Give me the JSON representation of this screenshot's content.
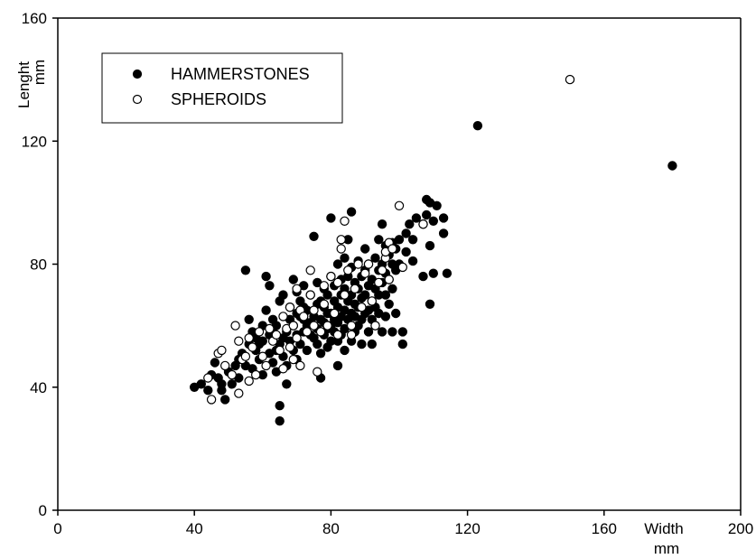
{
  "chart_data": {
    "type": "scatter",
    "title": "",
    "xlabel": "Width",
    "xunit": "mm",
    "ylabel": "Lenght",
    "yunit": "mm",
    "xlim": [
      0,
      200
    ],
    "ylim": [
      0,
      160
    ],
    "xticks": [
      0,
      40,
      80,
      120,
      160,
      200
    ],
    "yticks": [
      0,
      40,
      80,
      120,
      160
    ],
    "grid": false,
    "legend_position": "top-left",
    "series": [
      {
        "name": "HAMMERSTONES",
        "marker": "filled-circle",
        "color": "#000000",
        "points": [
          [
            40,
            40
          ],
          [
            42,
            41
          ],
          [
            44,
            39
          ],
          [
            45,
            44
          ],
          [
            46,
            48
          ],
          [
            47,
            43
          ],
          [
            48,
            39
          ],
          [
            48,
            41
          ],
          [
            49,
            36
          ],
          [
            50,
            45
          ],
          [
            51,
            41
          ],
          [
            52,
            47
          ],
          [
            53,
            43
          ],
          [
            53,
            49
          ],
          [
            54,
            51
          ],
          [
            55,
            47
          ],
          [
            55,
            78
          ],
          [
            56,
            54
          ],
          [
            56,
            62
          ],
          [
            57,
            46
          ],
          [
            57,
            58
          ],
          [
            58,
            52
          ],
          [
            58,
            56
          ],
          [
            59,
            49
          ],
          [
            59,
            54
          ],
          [
            60,
            60
          ],
          [
            60,
            55
          ],
          [
            60,
            44
          ],
          [
            61,
            76
          ],
          [
            61,
            65
          ],
          [
            62,
            57
          ],
          [
            62,
            51
          ],
          [
            62,
            73
          ],
          [
            63,
            58
          ],
          [
            63,
            48
          ],
          [
            63,
            62
          ],
          [
            64,
            60
          ],
          [
            64,
            45
          ],
          [
            64,
            52
          ],
          [
            65,
            54
          ],
          [
            65,
            68
          ],
          [
            65,
            34
          ],
          [
            65,
            29
          ],
          [
            66,
            56
          ],
          [
            66,
            50
          ],
          [
            66,
            70
          ],
          [
            67,
            47
          ],
          [
            67,
            41
          ],
          [
            67,
            58
          ],
          [
            68,
            55
          ],
          [
            68,
            62
          ],
          [
            68,
            66
          ],
          [
            69,
            52
          ],
          [
            69,
            60
          ],
          [
            69,
            75
          ],
          [
            70,
            57
          ],
          [
            70,
            49
          ],
          [
            70,
            64
          ],
          [
            70,
            71
          ],
          [
            71,
            54
          ],
          [
            71,
            63
          ],
          [
            71,
            68
          ],
          [
            72,
            58
          ],
          [
            72,
            62
          ],
          [
            72,
            66
          ],
          [
            72,
            73
          ],
          [
            73,
            52
          ],
          [
            73,
            60
          ],
          [
            73,
            65
          ],
          [
            74,
            57
          ],
          [
            74,
            61
          ],
          [
            74,
            70
          ],
          [
            75,
            56
          ],
          [
            75,
            89
          ],
          [
            75,
            63
          ],
          [
            76,
            54
          ],
          [
            76,
            59
          ],
          [
            76,
            67
          ],
          [
            76,
            74
          ],
          [
            77,
            43
          ],
          [
            77,
            51
          ],
          [
            77,
            62
          ],
          [
            77,
            68
          ],
          [
            78,
            57
          ],
          [
            78,
            61
          ],
          [
            78,
            66
          ],
          [
            78,
            72
          ],
          [
            79,
            53
          ],
          [
            79,
            59
          ],
          [
            79,
            64
          ],
          [
            79,
            70
          ],
          [
            80,
            95
          ],
          [
            80,
            55
          ],
          [
            80,
            60
          ],
          [
            80,
            64
          ],
          [
            80,
            76
          ],
          [
            81,
            58
          ],
          [
            81,
            62
          ],
          [
            81,
            68
          ],
          [
            81,
            73
          ],
          [
            82,
            47
          ],
          [
            82,
            55
          ],
          [
            82,
            61
          ],
          [
            82,
            66
          ],
          [
            82,
            80
          ],
          [
            83,
            57
          ],
          [
            83,
            63
          ],
          [
            83,
            70
          ],
          [
            83,
            75
          ],
          [
            84,
            52
          ],
          [
            84,
            59
          ],
          [
            84,
            65
          ],
          [
            84,
            72
          ],
          [
            84,
            82
          ],
          [
            85,
            62
          ],
          [
            85,
            68
          ],
          [
            85,
            76
          ],
          [
            85,
            88
          ],
          [
            86,
            97
          ],
          [
            86,
            55
          ],
          [
            86,
            64
          ],
          [
            86,
            70
          ],
          [
            86,
            79
          ],
          [
            87,
            58
          ],
          [
            87,
            63
          ],
          [
            87,
            67
          ],
          [
            87,
            74
          ],
          [
            88,
            60
          ],
          [
            88,
            66
          ],
          [
            88,
            72
          ],
          [
            88,
            81
          ],
          [
            89,
            54
          ],
          [
            89,
            62
          ],
          [
            89,
            69
          ],
          [
            89,
            76
          ],
          [
            90,
            64
          ],
          [
            90,
            70
          ],
          [
            90,
            78
          ],
          [
            90,
            85
          ],
          [
            91,
            58
          ],
          [
            91,
            65
          ],
          [
            91,
            73
          ],
          [
            91,
            80
          ],
          [
            92,
            54
          ],
          [
            92,
            62
          ],
          [
            92,
            68
          ],
          [
            92,
            75
          ],
          [
            93,
            60
          ],
          [
            93,
            66
          ],
          [
            93,
            72
          ],
          [
            93,
            82
          ],
          [
            94,
            64
          ],
          [
            94,
            70
          ],
          [
            94,
            78
          ],
          [
            94,
            88
          ],
          [
            95,
            58
          ],
          [
            95,
            74
          ],
          [
            95,
            80
          ],
          [
            95,
            93
          ],
          [
            96,
            63
          ],
          [
            96,
            70
          ],
          [
            96,
            77
          ],
          [
            96,
            86
          ],
          [
            97,
            67
          ],
          [
            97,
            75
          ],
          [
            97,
            83
          ],
          [
            98,
            58
          ],
          [
            98,
            72
          ],
          [
            98,
            80
          ],
          [
            98,
            87
          ],
          [
            99,
            64
          ],
          [
            99,
            78
          ],
          [
            99,
            85
          ],
          [
            100,
            80
          ],
          [
            100,
            88
          ],
          [
            101,
            54
          ],
          [
            101,
            58
          ],
          [
            102,
            90
          ],
          [
            102,
            84
          ],
          [
            103,
            93
          ],
          [
            104,
            88
          ],
          [
            104,
            81
          ],
          [
            105,
            95
          ],
          [
            107,
            93
          ],
          [
            107,
            76
          ],
          [
            108,
            101
          ],
          [
            108,
            96
          ],
          [
            109,
            100
          ],
          [
            109,
            86
          ],
          [
            109,
            67
          ],
          [
            110,
            94
          ],
          [
            110,
            77
          ],
          [
            111,
            99
          ],
          [
            113,
            95
          ],
          [
            113,
            90
          ],
          [
            114,
            77
          ],
          [
            123,
            125
          ],
          [
            180,
            112
          ]
        ]
      },
      {
        "name": "SPHEROIDS",
        "marker": "open-circle",
        "color": "#000000",
        "points": [
          [
            44,
            43
          ],
          [
            45,
            36
          ],
          [
            47,
            51
          ],
          [
            48,
            52
          ],
          [
            49,
            47
          ],
          [
            51,
            44
          ],
          [
            52,
            60
          ],
          [
            53,
            38
          ],
          [
            53,
            55
          ],
          [
            54,
            49
          ],
          [
            55,
            50
          ],
          [
            56,
            42
          ],
          [
            56,
            56
          ],
          [
            57,
            53
          ],
          [
            58,
            44
          ],
          [
            59,
            58
          ],
          [
            60,
            50
          ],
          [
            61,
            47
          ],
          [
            62,
            59
          ],
          [
            63,
            55
          ],
          [
            64,
            57
          ],
          [
            65,
            52
          ],
          [
            66,
            46
          ],
          [
            66,
            63
          ],
          [
            67,
            59
          ],
          [
            68,
            66
          ],
          [
            68,
            53
          ],
          [
            69,
            49
          ],
          [
            69,
            60
          ],
          [
            70,
            72
          ],
          [
            70,
            56
          ],
          [
            71,
            65
          ],
          [
            71,
            47
          ],
          [
            72,
            63
          ],
          [
            73,
            58
          ],
          [
            74,
            70
          ],
          [
            74,
            78
          ],
          [
            75,
            60
          ],
          [
            75,
            65
          ],
          [
            76,
            45
          ],
          [
            77,
            58
          ],
          [
            78,
            73
          ],
          [
            78,
            67
          ],
          [
            79,
            60
          ],
          [
            80,
            76
          ],
          [
            81,
            64
          ],
          [
            82,
            74
          ],
          [
            82,
            57
          ],
          [
            83,
            85
          ],
          [
            83,
            88
          ],
          [
            84,
            70
          ],
          [
            84,
            94
          ],
          [
            85,
            78
          ],
          [
            86,
            60
          ],
          [
            86,
            57
          ],
          [
            87,
            72
          ],
          [
            88,
            80
          ],
          [
            89,
            66
          ],
          [
            90,
            77
          ],
          [
            91,
            80
          ],
          [
            92,
            68
          ],
          [
            93,
            60
          ],
          [
            94,
            74
          ],
          [
            95,
            78
          ],
          [
            96,
            82
          ],
          [
            96,
            84
          ],
          [
            97,
            87
          ],
          [
            97,
            75
          ],
          [
            98,
            85
          ],
          [
            100,
            99
          ],
          [
            101,
            79
          ],
          [
            107,
            93
          ],
          [
            150,
            140
          ]
        ]
      }
    ]
  }
}
